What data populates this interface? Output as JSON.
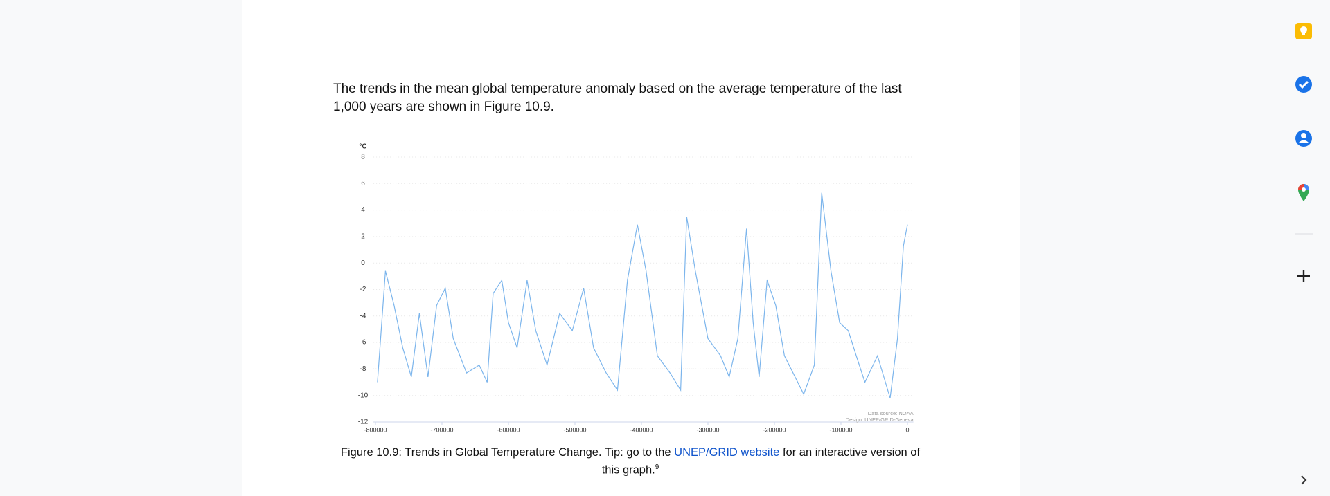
{
  "document": {
    "paragraph": "The trends in the mean global temperature anomaly based on the average temperature of the last 1,000 years are shown in Figure 10.9.",
    "caption": {
      "before": "Figure 10.9: Trends in Global Temperature Change. Tip: go to the",
      "link": "UNEP/GRID website",
      "after": "for an interactive version of this graph.",
      "footnote": "9"
    }
  },
  "chart_data": {
    "type": "line",
    "y_unit": "°C",
    "source_lines": [
      "Data source: NOAA",
      "Design: UNEP/GRID-Geneva"
    ],
    "x": [
      -797000,
      -785000,
      -772000,
      -759000,
      -746000,
      -734000,
      -721000,
      -708000,
      -695000,
      -683000,
      -663000,
      -644000,
      -632000,
      -623000,
      -610000,
      -600000,
      -587000,
      -572000,
      -559000,
      -542000,
      -523000,
      -504000,
      -487000,
      -472000,
      -453000,
      -436000,
      -421000,
      -406000,
      -393000,
      -376000,
      -357000,
      -341000,
      -332000,
      -319000,
      -300000,
      -281000,
      -268000,
      -255000,
      -242000,
      -232000,
      -223000,
      -211000,
      -198000,
      -185000,
      -172000,
      -156000,
      -140000,
      -129000,
      -115000,
      -102000,
      -89000,
      -77000,
      -64000,
      -45000,
      -26000,
      -15000,
      -6000,
      0
    ],
    "values": [
      -9,
      -0.6,
      -3.2,
      -6.4,
      -8.6,
      -3.8,
      -8.6,
      -3.2,
      -1.9,
      -5.7,
      -8.3,
      -7.7,
      -9,
      -2.3,
      -1.3,
      -4.5,
      -6.4,
      -1.3,
      -5.1,
      -7.7,
      -3.8,
      -5.1,
      -1.9,
      -6.4,
      -8.3,
      -9.6,
      -1.3,
      2.9,
      -0.6,
      -7,
      -8.3,
      -9.6,
      3.5,
      -0.6,
      -5.7,
      -7,
      -8.6,
      -5.7,
      2.6,
      -4.5,
      -8.6,
      -1.3,
      -3.2,
      -7,
      -8.3,
      -9.9,
      -7.7,
      5.3,
      -0.6,
      -4.5,
      -5.1,
      -7,
      -9,
      -7,
      -10.2,
      -5.7,
      1.3,
      2.9
    ],
    "color": "#7cb5ec",
    "xlim": [
      -803000,
      9000
    ],
    "xticks": [
      -800000,
      -700000,
      -600000,
      -500000,
      -400000,
      -300000,
      -200000,
      -100000,
      0
    ],
    "ylim": [
      -12,
      8
    ],
    "yticks": [
      8,
      6,
      4,
      2,
      0,
      -2,
      -4,
      -6,
      -8,
      -10,
      -12
    ],
    "grid": true,
    "reference_line": -8
  }
}
